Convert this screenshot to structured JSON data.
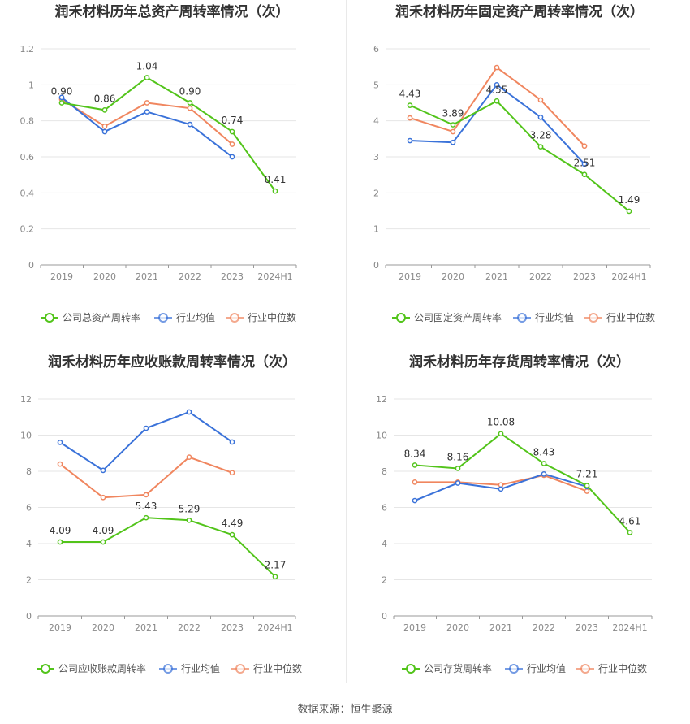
{
  "footer": {
    "source": "数据来源：恒生聚源"
  },
  "legend_common": {
    "industry_avg": "行业均值",
    "industry_median": "行业中位数"
  },
  "colors": {
    "company": "#52c41a",
    "avg": "#3a72d9",
    "median": "#f0865f",
    "grid": "#e6e6e6",
    "axis": "#888888"
  },
  "chart_data": [
    {
      "type": "line",
      "title": "润禾材料历年总资产周转率情况（次）",
      "categories": [
        "2019",
        "2020",
        "2021",
        "2022",
        "2023",
        "2024H1"
      ],
      "ylim": [
        0,
        1.2
      ],
      "yticks": [
        "0",
        "0.2",
        "0.4",
        "0.6",
        "0.8",
        "1",
        "1.2"
      ],
      "series": [
        {
          "name": "公司总资产周转率",
          "values": [
            0.9,
            0.86,
            1.04,
            0.9,
            0.74,
            0.41
          ],
          "labels": [
            "0.90",
            "0.86",
            "1.04",
            "0.90",
            "0.74",
            "0.41"
          ]
        },
        {
          "name": "行业均值",
          "values": [
            0.93,
            0.74,
            0.85,
            0.78,
            0.6,
            null
          ]
        },
        {
          "name": "行业中位数",
          "values": [
            0.92,
            0.77,
            0.9,
            0.87,
            0.67,
            null
          ]
        }
      ]
    },
    {
      "type": "line",
      "title": "润禾材料历年固定资产周转率情况（次）",
      "categories": [
        "2019",
        "2020",
        "2021",
        "2022",
        "2023",
        "2024H1"
      ],
      "ylim": [
        0,
        6
      ],
      "yticks": [
        "0",
        "1",
        "2",
        "3",
        "4",
        "5",
        "6"
      ],
      "series": [
        {
          "name": "公司固定资产周转率",
          "values": [
            4.43,
            3.89,
            4.55,
            3.28,
            2.51,
            1.49
          ],
          "labels": [
            "4.43",
            "3.89",
            "4.55",
            "3.28",
            "2.51",
            "1.49"
          ]
        },
        {
          "name": "行业均值",
          "values": [
            3.45,
            3.4,
            5.0,
            4.1,
            2.8,
            null
          ]
        },
        {
          "name": "行业中位数",
          "values": [
            4.08,
            3.7,
            5.48,
            4.58,
            3.3,
            null
          ]
        }
      ]
    },
    {
      "type": "line",
      "title": "润禾材料历年应收账款周转率情况（次）",
      "categories": [
        "2019",
        "2020",
        "2021",
        "2022",
        "2023",
        "2024H1"
      ],
      "ylim": [
        0,
        12
      ],
      "yticks": [
        "0",
        "2",
        "4",
        "6",
        "8",
        "10",
        "12"
      ],
      "series": [
        {
          "name": "公司应收账款周转率",
          "values": [
            4.09,
            4.09,
            5.43,
            5.29,
            4.49,
            2.17
          ],
          "labels": [
            "4.09",
            "4.09",
            "5.43",
            "5.29",
            "4.49",
            "2.17"
          ]
        },
        {
          "name": "行业均值",
          "values": [
            9.6,
            8.05,
            10.38,
            11.28,
            9.62,
            null
          ]
        },
        {
          "name": "行业中位数",
          "values": [
            8.4,
            6.55,
            6.7,
            8.78,
            7.92,
            null
          ]
        }
      ]
    },
    {
      "type": "line",
      "title": "润禾材料历年存货周转率情况（次）",
      "categories": [
        "2019",
        "2020",
        "2021",
        "2022",
        "2023",
        "2024H1"
      ],
      "ylim": [
        0,
        12
      ],
      "yticks": [
        "0",
        "2",
        "4",
        "6",
        "8",
        "10",
        "12"
      ],
      "series": [
        {
          "name": "公司存货周转率",
          "values": [
            8.34,
            8.16,
            10.08,
            8.43,
            7.21,
            4.61
          ],
          "labels": [
            "8.34",
            "8.16",
            "10.08",
            "8.43",
            "7.21",
            "4.61"
          ]
        },
        {
          "name": "行业均值",
          "values": [
            6.38,
            7.35,
            7.02,
            7.85,
            7.15,
            null
          ]
        },
        {
          "name": "行业中位数",
          "values": [
            7.4,
            7.4,
            7.25,
            7.78,
            6.9,
            null
          ]
        }
      ]
    }
  ]
}
